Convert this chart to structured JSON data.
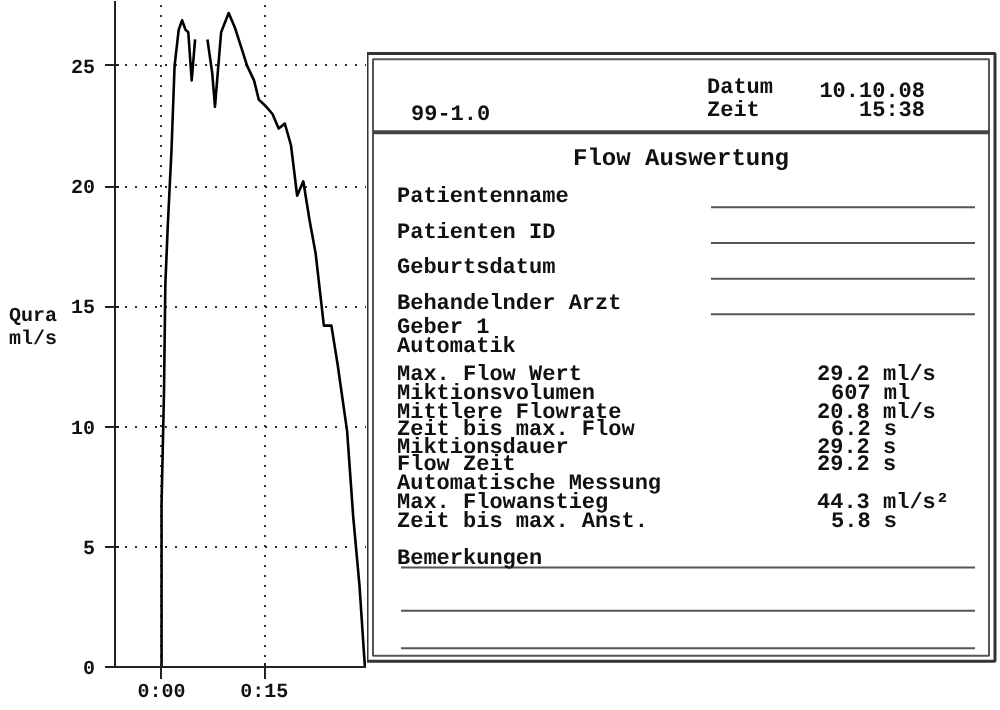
{
  "chart_data": {
    "type": "line",
    "title": "Flow Auswertung",
    "ylabel": "Qura ml/s",
    "x": [
      0,
      0,
      0.36,
      0.55,
      0.9,
      1.45,
      1.9,
      2.5,
      3.0,
      3.5,
      3.9,
      4.4,
      4.9,
      5.3,
      5.8,
      6.4,
      6.7,
      7.4,
      7.8,
      8.2,
      8.7,
      9.8,
      10.7,
      11.6,
      12.5,
      13.5,
      14.2,
      15.3,
      16.2,
      17.1,
      18.0,
      18.9,
      19.8,
      20.7,
      21.6,
      22.5,
      23.7,
      24.8,
      25.7,
      27.1,
      28.0,
      28.9,
      29.6,
      29.7
    ],
    "values": [
      0,
      6.8,
      11.5,
      15.9,
      18.3,
      21.5,
      25.0,
      26.5,
      26.9,
      26.5,
      26.4,
      24.4,
      26.1,
      null,
      null,
      null,
      26.1,
      24.7,
      23.3,
      24.7,
      26.4,
      27.2,
      26.6,
      25.8,
      25.0,
      24.4,
      23.6,
      23.3,
      23.0,
      22.4,
      22.6,
      21.7,
      19.6,
      20.2,
      18.6,
      17.2,
      14.2,
      14.2,
      12.6,
      9.8,
      6.2,
      3.4,
      0.4,
      0
    ],
    "color": "#000000",
    "xlim": [
      -6.8,
      30
    ],
    "ylim": [
      0,
      27.7
    ],
    "xticks": [
      {
        "value": 0,
        "label": "0:00"
      },
      {
        "value": 15,
        "label": "0:15"
      }
    ],
    "yticks": [
      0,
      5,
      10,
      15,
      20,
      25
    ],
    "grid": true,
    "annotations": [
      "99-1.0",
      "Datum",
      "10.10.08",
      "Zeit",
      "15:38",
      "Patientenname",
      "Patienten ID",
      "Geburtsdatum",
      "Behandelnder Arzt",
      "Geber 1",
      "Automatik",
      "Max. Flow Wert",
      "Miktionsvolumen",
      "Mittlere Flowrate",
      "Zeit bis max. Flow",
      "Miktionsdauer",
      "Flow Zeit",
      "Automatische Messung",
      "Max. Flowanstieg",
      "Zeit bis max. Anst.",
      "29.2 ml/s",
      "607 ml",
      "20.8 ml/s",
      "6.2 s",
      "29.2 s",
      "29.2 s",
      "44.3 ml/s²",
      "5.8 s",
      "Bemerkungen"
    ]
  }
}
